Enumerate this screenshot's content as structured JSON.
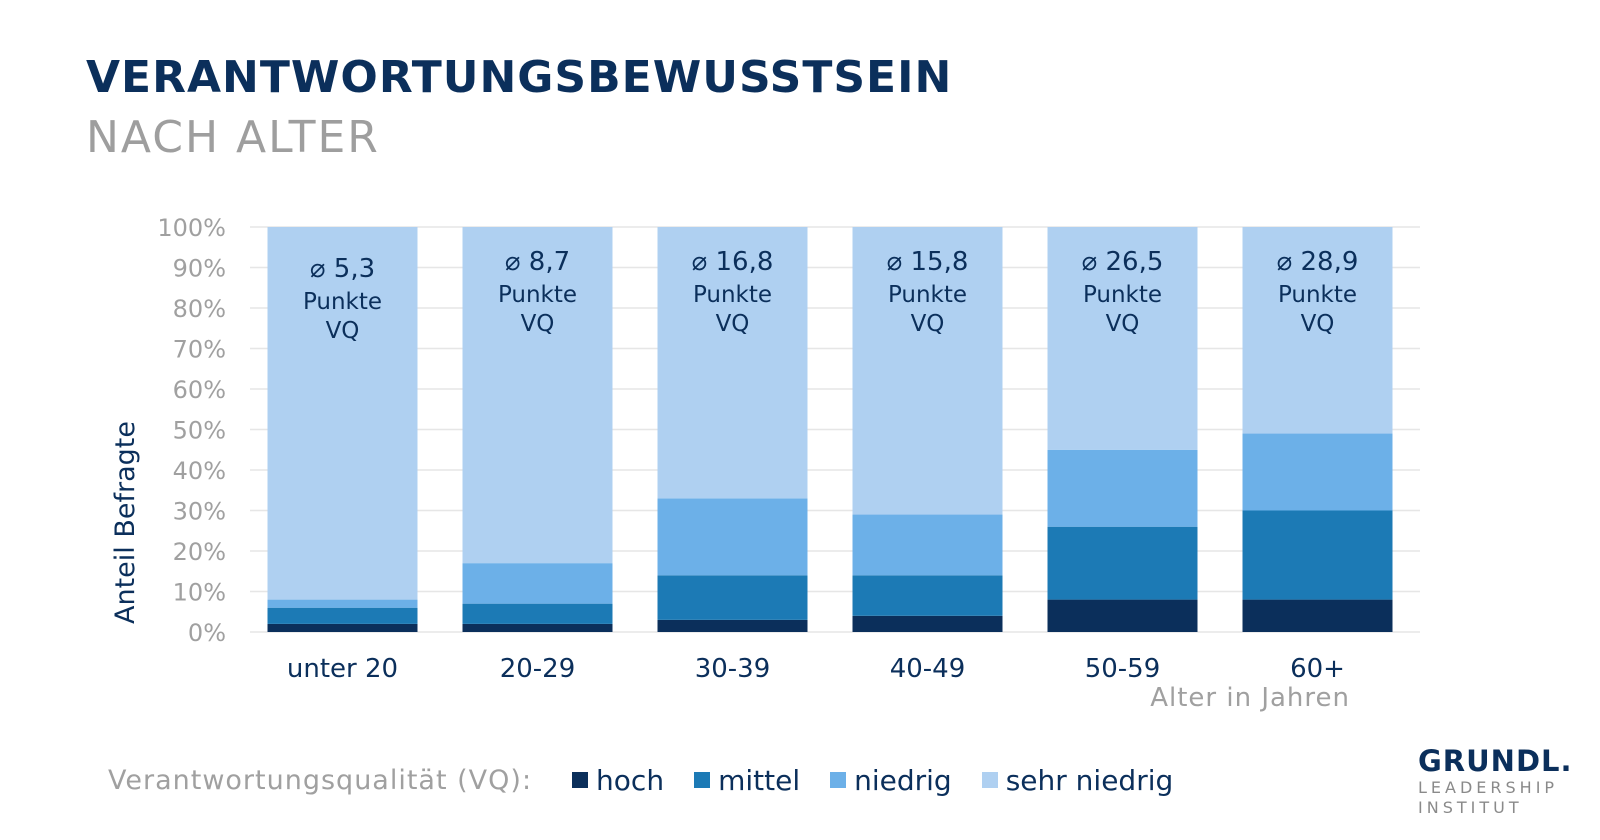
{
  "header": {
    "title": "VERANTWORTUNGSBEWUSSTSEIN",
    "subtitle": "NACH ALTER"
  },
  "legend": {
    "label": "Verantwortungsqualität (VQ):",
    "items": [
      {
        "name": "hoch",
        "color": "#0b2f5b"
      },
      {
        "name": "mittel",
        "color": "#1c7ab5"
      },
      {
        "name": "niedrig",
        "color": "#6cb0e8"
      },
      {
        "name": "sehr niedrig",
        "color": "#afd0f1"
      }
    ]
  },
  "logo": {
    "main": "GRUNDL.",
    "line1": "LEADERSHIP",
    "line2": "INSTITUT"
  },
  "chart_data": {
    "type": "bar",
    "stacked": true,
    "categories": [
      "unter 20",
      "20-29",
      "30-39",
      "40-49",
      "50-59",
      "60+"
    ],
    "ylabel": "Anteil Befragte",
    "xlabel": "Alter in Jahren",
    "ylim": [
      0,
      100
    ],
    "y_ticks": [
      "0%",
      "10%",
      "20%",
      "30%",
      "40%",
      "50%",
      "60%",
      "70%",
      "80%",
      "90%",
      "100%"
    ],
    "grid": true,
    "series": [
      {
        "name": "hoch",
        "color": "#0b2f5b",
        "values": [
          2,
          2,
          3,
          4,
          8,
          8
        ]
      },
      {
        "name": "mittel",
        "color": "#1c7ab5",
        "values": [
          4,
          5,
          11,
          10,
          18,
          22
        ]
      },
      {
        "name": "niedrig",
        "color": "#6cb0e8",
        "values": [
          2,
          10,
          19,
          15,
          19,
          19
        ]
      },
      {
        "name": "sehr niedrig",
        "color": "#afd0f1",
        "values": [
          92,
          83,
          67,
          71,
          55,
          51
        ]
      }
    ],
    "bar_annotations": [
      {
        "average": "⌀ 5,3",
        "line2": "Punkte",
        "line3": "VQ"
      },
      {
        "average": "⌀ 8,7",
        "line2": "Punkte",
        "line3": "VQ"
      },
      {
        "average": "⌀ 16,8",
        "line2": "Punkte",
        "line3": "VQ"
      },
      {
        "average": "⌀ 15,8",
        "line2": "Punkte",
        "line3": "VQ"
      },
      {
        "average": "⌀ 26,5",
        "line2": "Punkte",
        "line3": "VQ"
      },
      {
        "average": "⌀ 28,9",
        "line2": "Punkte",
        "line3": "VQ"
      }
    ]
  }
}
